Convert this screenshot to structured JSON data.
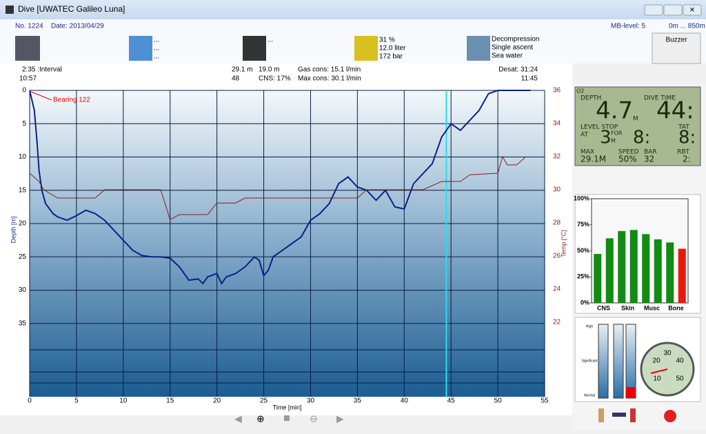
{
  "window": {
    "title": "Dive  [UWATEC Galileo Luna]"
  },
  "header": {
    "number": "No. 1224",
    "date": "Date: 2013/04/29",
    "mb_level": "MB-level: 5",
    "altitude": "0m ... 850m",
    "buzzer": "Buzzer",
    "weather": [
      "...",
      "...",
      "..."
    ],
    "camera": "...",
    "tank": [
      "31 %",
      "12.0 liter",
      "172 bar"
    ],
    "dive_type": [
      "Decompression",
      "Single ascent",
      "Sea water",
      "..."
    ]
  },
  "stats": {
    "interval": "2:35 :Interval",
    "entry_time": "10:57",
    "max_depth": "29.1 m",
    "avg_depth": "19.0 m",
    "duration": "48",
    "cns": "CNS: 17%",
    "gas_cons": "Gas cons: 15.1 l/min",
    "max_cons": "Max cons: 30.1 l/min",
    "desat": "Desat: 31:24",
    "exit_time": "11:45"
  },
  "chart_data": [
    {
      "type": "line",
      "xlabel": "Time [min]",
      "ylabel": "Depth [m]",
      "y2label": "Temp [°C]",
      "annotation": "Bearing 122",
      "xlim": [
        0,
        55
      ],
      "xticks": [
        0,
        5,
        10,
        15,
        20,
        25,
        30,
        35,
        40,
        45,
        50,
        55
      ],
      "ylim": [
        0,
        46
      ],
      "y_reversed": true,
      "yticks": [
        0,
        5,
        10,
        15,
        20,
        25,
        30,
        35
      ],
      "y2lim": [
        17.5,
        36
      ],
      "y2ticks": [
        22,
        24,
        26,
        28,
        30,
        32,
        34,
        36
      ],
      "grid": true,
      "cursor_x": 44.5,
      "series": [
        {
          "color": "#0a1f8a",
          "x": [
            0,
            0.5,
            0.8,
            1,
            1.3,
            1.7,
            2.5,
            3,
            4,
            5,
            6,
            7,
            8,
            9,
            10,
            11,
            12,
            13,
            14,
            15,
            16,
            17,
            18,
            18.5,
            19,
            20,
            20.5,
            21,
            22,
            23,
            24,
            24.5,
            25,
            25.5,
            26,
            27,
            28,
            29,
            30,
            31,
            32,
            33,
            34,
            35,
            36,
            37,
            38,
            39,
            40,
            41,
            42,
            43,
            44,
            45,
            46,
            47,
            48,
            49,
            50,
            53.5
          ],
          "values": [
            0,
            3,
            8,
            12,
            15,
            17,
            18.5,
            19,
            19.5,
            18.8,
            18,
            18.5,
            19.5,
            21,
            22.5,
            24,
            24.8,
            25,
            25,
            25.2,
            26.5,
            28.5,
            28.3,
            29,
            28,
            27.5,
            29,
            28,
            27.5,
            26.5,
            25,
            25.5,
            27.8,
            27,
            25,
            24,
            23,
            22,
            19.5,
            18.5,
            17,
            14,
            13,
            14.5,
            15,
            16.5,
            15,
            17.5,
            17.8,
            14,
            12.5,
            11,
            7,
            5,
            6,
            4.5,
            3,
            0.5,
            0,
            0
          ]
        },
        {
          "color": "#8b1a1a",
          "axis": "y2",
          "x": [
            0,
            1,
            1.5,
            3,
            5,
            7,
            8,
            13,
            14,
            15,
            16,
            19,
            20,
            22,
            23,
            33,
            35,
            36,
            40,
            42,
            44,
            46,
            47,
            50,
            50.5,
            51,
            52,
            53
          ],
          "values": [
            31,
            30.5,
            30,
            29.5,
            29.5,
            29.5,
            30,
            30,
            30,
            28.2,
            28.5,
            28.5,
            29.2,
            29.2,
            29.5,
            29.5,
            29.5,
            30,
            30,
            30,
            30.5,
            30.5,
            30.9,
            31,
            32,
            31.5,
            31.5,
            32
          ]
        }
      ]
    },
    {
      "type": "bar",
      "categories": [
        null,
        "CNS",
        null,
        "Skin",
        null,
        "Musc",
        null,
        "Bone"
      ],
      "values": [
        47,
        62,
        69,
        70,
        66,
        61,
        58,
        52
      ],
      "colors": [
        "#138a13",
        "#138a13",
        "#138a13",
        "#138a13",
        "#138a13",
        "#138a13",
        "#138a13",
        "#e8180c"
      ],
      "ylim": [
        0,
        100
      ],
      "yticks": [
        {
          "value": 0,
          "label": "0%"
        },
        {
          "value": 25,
          "label": "25%"
        },
        {
          "value": 50,
          "label": "50%"
        },
        {
          "value": 75,
          "label": "75%"
        },
        {
          "value": 100,
          "label": "100%"
        }
      ]
    }
  ],
  "computer": {
    "o2": "O2",
    "depth_label": "DEPTH",
    "depth": "4.7",
    "depth_unit": "M",
    "time_label": "DIVE TIME",
    "time": "44:",
    "level_stop": "LEVEL STOP",
    "at": "AT",
    "stop_depth": "3",
    "for": "FOR",
    "stop_unit": "M",
    "stop_time": "8:",
    "tat_label": "TAT",
    "tat": "8:",
    "max_label": "MAX",
    "max": "29.1M",
    "speed_label": "SPEED",
    "speed": "50%",
    "bar_label": "BAR",
    "bar": "32",
    "rbt_label": "RBT",
    "rbt": "2:"
  },
  "workload": {
    "levels": [
      "High",
      "Significant",
      "Normal"
    ]
  },
  "gauge": {
    "labels": [
      "10",
      "20",
      "30",
      "40",
      "50"
    ]
  }
}
